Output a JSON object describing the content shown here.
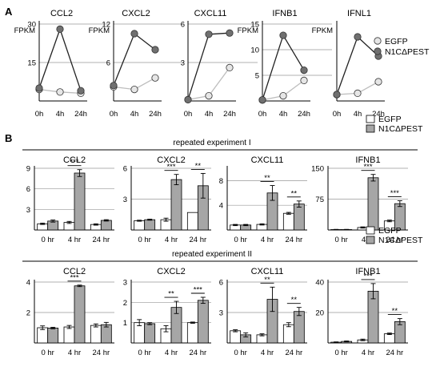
{
  "panel_labels": {
    "a": "A",
    "b": "B"
  },
  "legend_a": [
    {
      "label": "EGFP",
      "fill": "#e6e6e6"
    },
    {
      "label": "N1CΔPEST",
      "fill": "#707070"
    }
  ],
  "legend_b": [
    {
      "label": "EGFP",
      "fill": "#ffffff"
    },
    {
      "label": "N1CΔPEST",
      "fill": "#a6a6a6"
    }
  ],
  "experiments": [
    "repeated experiment I",
    "repeated experiment II"
  ],
  "colors": {
    "egfp_line": "#bdbdbd",
    "n1c_line": "#222222",
    "grid": "#999999"
  },
  "chart_data": [
    {
      "type": "line",
      "panel": "A",
      "ylabel": "FPKM",
      "x": [
        "0h",
        "4h",
        "24h"
      ],
      "charts": [
        {
          "title": "CCL2",
          "ylim": [
            0,
            30
          ],
          "yticks": [
            15,
            30
          ],
          "ytick_labels": [
            "15",
            "30"
          ],
          "show_ylabel": true,
          "series": [
            {
              "name": "EGFP",
              "values": [
                4.5,
                3.5,
                3
              ]
            },
            {
              "name": "N1CΔPEST",
              "values": [
                5,
                28,
                4
              ]
            }
          ]
        },
        {
          "title": "CXCL2",
          "ylim": [
            0,
            12
          ],
          "yticks": [
            6,
            12
          ],
          "ytick_labels": [
            "6",
            "12"
          ],
          "show_ylabel": true,
          "series": [
            {
              "name": "EGFP",
              "values": [
                2.2,
                1.8,
                3.6
              ]
            },
            {
              "name": "N1CΔPEST",
              "values": [
                2.4,
                10.5,
                8
              ]
            }
          ]
        },
        {
          "title": "CXCL11",
          "ylim": [
            0,
            6
          ],
          "yticks": [
            3,
            6
          ],
          "ytick_labels": [
            "3",
            "6"
          ],
          "show_ylabel": false,
          "series": [
            {
              "name": "EGFP",
              "values": [
                0.1,
                0.4,
                2.6
              ]
            },
            {
              "name": "N1CΔPEST",
              "values": [
                0.1,
                5.2,
                5.3
              ]
            }
          ]
        },
        {
          "title": "IFNB1",
          "ylim": [
            0,
            15
          ],
          "yticks": [
            5,
            10,
            15
          ],
          "ytick_labels": [
            "5",
            "10",
            "15"
          ],
          "show_ylabel": true,
          "series": [
            {
              "name": "EGFP",
              "values": [
                0.2,
                1,
                4
              ]
            },
            {
              "name": "N1CΔPEST",
              "values": [
                0.2,
                12.8,
                6
              ]
            }
          ]
        },
        {
          "title": "IFNL1",
          "ylim": [
            0,
            12
          ],
          "yticks": [],
          "ytick_labels": [],
          "show_ylabel": true,
          "series": [
            {
              "name": "EGFP",
              "values": [
                1,
                1.2,
                3
              ]
            },
            {
              "name": "N1CΔPEST",
              "values": [
                1,
                10,
                7
              ]
            }
          ]
        }
      ]
    },
    {
      "type": "bar",
      "panel": "B",
      "experiment": "repeated experiment I",
      "categories": [
        "0 hr",
        "4 hr",
        "24 hr"
      ],
      "charts": [
        {
          "title": "CCL2",
          "ylim": [
            0,
            9
          ],
          "yticks": [
            3,
            6,
            9
          ],
          "ytick_labels": [
            "3",
            "6",
            "9"
          ],
          "series": [
            {
              "name": "EGFP",
              "values": [
                0.9,
                1.1,
                0.8
              ],
              "errors": [
                0.1,
                0.15,
                0.1
              ]
            },
            {
              "name": "N1CΔPEST",
              "values": [
                1.3,
                8.3,
                1.4
              ],
              "errors": [
                0.15,
                0.5,
                0.1
              ]
            }
          ],
          "significance": [
            {
              "category": 1,
              "label": "***"
            }
          ]
        },
        {
          "title": "CXCL2",
          "ylim": [
            0,
            6
          ],
          "yticks": [
            3,
            6
          ],
          "ytick_labels": [
            "3",
            "6"
          ],
          "series": [
            {
              "name": "EGFP",
              "values": [
                0.9,
                1,
                1.7
              ],
              "errors": [
                0.05,
                0.15,
                0
              ]
            },
            {
              "name": "N1CΔPEST",
              "values": [
                1,
                4.9,
                4.3
              ],
              "errors": [
                0.05,
                0.5,
                1.2
              ]
            }
          ],
          "significance": [
            {
              "category": 1,
              "label": "***"
            },
            {
              "category": 2,
              "label": "**"
            }
          ]
        },
        {
          "title": "CXCL11",
          "ylim": [
            0,
            10
          ],
          "yticks": [
            4,
            8
          ],
          "ytick_labels": [
            "4",
            "8"
          ],
          "series": [
            {
              "name": "EGFP",
              "values": [
                0.8,
                0.9,
                2.7
              ],
              "errors": [
                0.1,
                0.1,
                0.15
              ]
            },
            {
              "name": "N1CΔPEST",
              "values": [
                0.8,
                6,
                4.2
              ],
              "errors": [
                0.1,
                1.2,
                0.5
              ]
            }
          ],
          "significance": [
            {
              "category": 1,
              "label": "**"
            },
            {
              "category": 2,
              "label": "**"
            }
          ]
        },
        {
          "title": "IFNB1",
          "ylim": [
            0,
            150
          ],
          "yticks": [
            75,
            150
          ],
          "ytick_labels": [
            "75",
            "150"
          ],
          "series": [
            {
              "name": "EGFP",
              "values": [
                1,
                6,
                22
              ],
              "errors": [
                0.5,
                1.5,
                2
              ]
            },
            {
              "name": "N1CΔPEST",
              "values": [
                1,
                127,
                64
              ],
              "errors": [
                0.5,
                8,
                7
              ]
            }
          ],
          "significance": [
            {
              "category": 1,
              "label": "***"
            },
            {
              "category": 2,
              "label": "***"
            }
          ]
        }
      ]
    },
    {
      "type": "bar",
      "panel": "B",
      "experiment": "repeated experiment II",
      "categories": [
        "0 hr",
        "4 hr",
        "24 hr"
      ],
      "charts": [
        {
          "title": "CCL2",
          "ylim": [
            0,
            4
          ],
          "yticks": [
            2,
            4
          ],
          "ytick_labels": [
            "2",
            "4"
          ],
          "series": [
            {
              "name": "EGFP",
              "values": [
                1,
                1.05,
                1.15
              ],
              "errors": [
                0.12,
                0.1,
                0.1
              ]
            },
            {
              "name": "N1CΔPEST",
              "values": [
                0.98,
                3.75,
                1.2
              ],
              "errors": [
                0.05,
                0.05,
                0.15
              ]
            }
          ],
          "significance": [
            {
              "category": 1,
              "label": "***"
            }
          ]
        },
        {
          "title": "CXCL2",
          "ylim": [
            0,
            3
          ],
          "yticks": [
            1,
            2,
            3
          ],
          "ytick_labels": [
            "1",
            "2",
            "3"
          ],
          "series": [
            {
              "name": "EGFP",
              "values": [
                1,
                0.7,
                1
              ],
              "errors": [
                0.15,
                0.15,
                0.03
              ]
            },
            {
              "name": "N1CΔPEST",
              "values": [
                0.95,
                1.75,
                2.1
              ],
              "errors": [
                0.05,
                0.3,
                0.15
              ]
            }
          ],
          "significance": [
            {
              "category": 1,
              "label": "**"
            },
            {
              "category": 2,
              "label": "***"
            }
          ]
        },
        {
          "title": "CXCL11",
          "ylim": [
            0,
            6
          ],
          "yticks": [
            3,
            6
          ],
          "ytick_labels": [
            "3",
            "6"
          ],
          "series": [
            {
              "name": "EGFP",
              "values": [
                1.2,
                0.8,
                1.8
              ],
              "errors": [
                0.1,
                0.1,
                0.2
              ]
            },
            {
              "name": "N1CΔPEST",
              "values": [
                0.8,
                4.3,
                3.1
              ],
              "errors": [
                0.2,
                1.2,
                0.4
              ]
            }
          ],
          "significance": [
            {
              "category": 1,
              "label": "**"
            },
            {
              "category": 2,
              "label": "**"
            }
          ]
        },
        {
          "title": "IFNB1",
          "ylim": [
            0,
            40
          ],
          "yticks": [
            20,
            40
          ],
          "ytick_labels": [
            "20",
            "40"
          ],
          "series": [
            {
              "name": "EGFP",
              "values": [
                0.5,
                2,
                6
              ],
              "errors": [
                0.2,
                0.5,
                0.5
              ]
            },
            {
              "name": "N1CΔPEST",
              "values": [
                1,
                34,
                14
              ],
              "errors": [
                0.3,
                5,
                2
              ]
            }
          ],
          "significance": [
            {
              "category": 1,
              "label": "***"
            },
            {
              "category": 2,
              "label": "**"
            }
          ]
        }
      ]
    }
  ]
}
